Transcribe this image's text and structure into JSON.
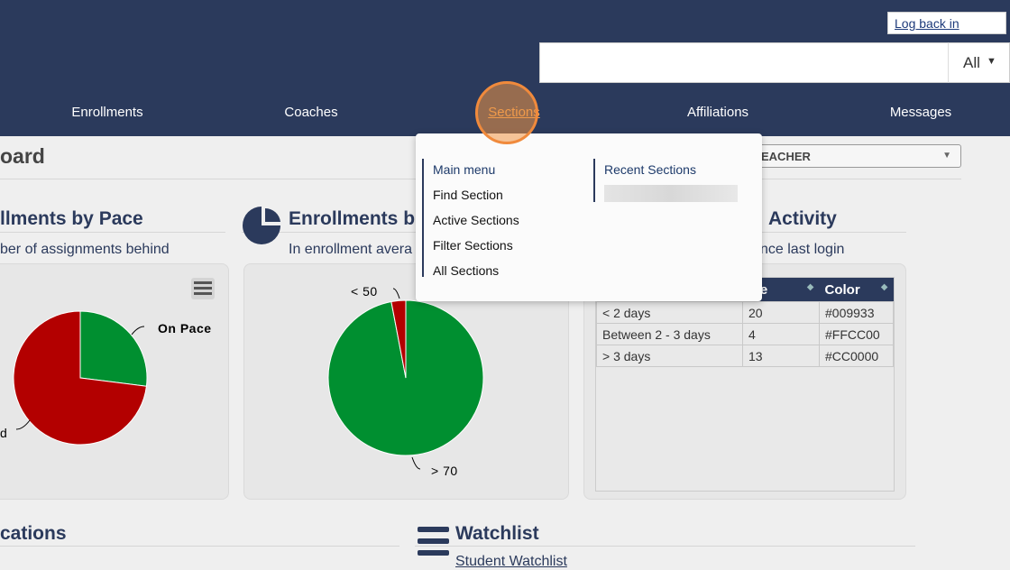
{
  "header": {
    "login_link": "Log back in",
    "search_scope": "All"
  },
  "nav": [
    "Enrollments",
    "Coaches",
    "Sections",
    "Affiliations",
    "Messages"
  ],
  "dashboard_title": "oard",
  "role_select": "EACHER",
  "dropdown": {
    "main_menu_title": "Main menu",
    "items": [
      "Find Section",
      "Active Sections",
      "Filter Sections",
      "All Sections"
    ],
    "recent_title": "Recent Sections"
  },
  "widgets": [
    {
      "title": "llments by Pace",
      "subtitle": "ber of assignments behind",
      "chart": {
        "type": "pie",
        "categories": [
          "On Pace",
          "d"
        ],
        "values": [
          27,
          73
        ],
        "colors": [
          "#008f30",
          "#b30000"
        ]
      }
    },
    {
      "title": "Enrollments b",
      "subtitle": "In enrollment avera",
      "chart": {
        "type": "pie",
        "categories": [
          "> 70",
          "< 50"
        ],
        "values": [
          97,
          3
        ],
        "colors": [
          "#008f30",
          "#b30000"
        ]
      }
    },
    {
      "title": "Activity",
      "subtitle": "nce last login",
      "table": {
        "columns": [
          "lue",
          "Color"
        ],
        "rows": [
          [
            "< 2 days",
            20,
            "#009933"
          ],
          [
            "Between 2 - 3 days",
            4,
            "#FFCC00"
          ],
          [
            "> 3 days",
            13,
            "#CC0000"
          ]
        ]
      }
    }
  ],
  "bottom": {
    "left_title": "cations",
    "watchlist_title": "Watchlist",
    "watchlist_subtitle": "Student Watchlist"
  }
}
